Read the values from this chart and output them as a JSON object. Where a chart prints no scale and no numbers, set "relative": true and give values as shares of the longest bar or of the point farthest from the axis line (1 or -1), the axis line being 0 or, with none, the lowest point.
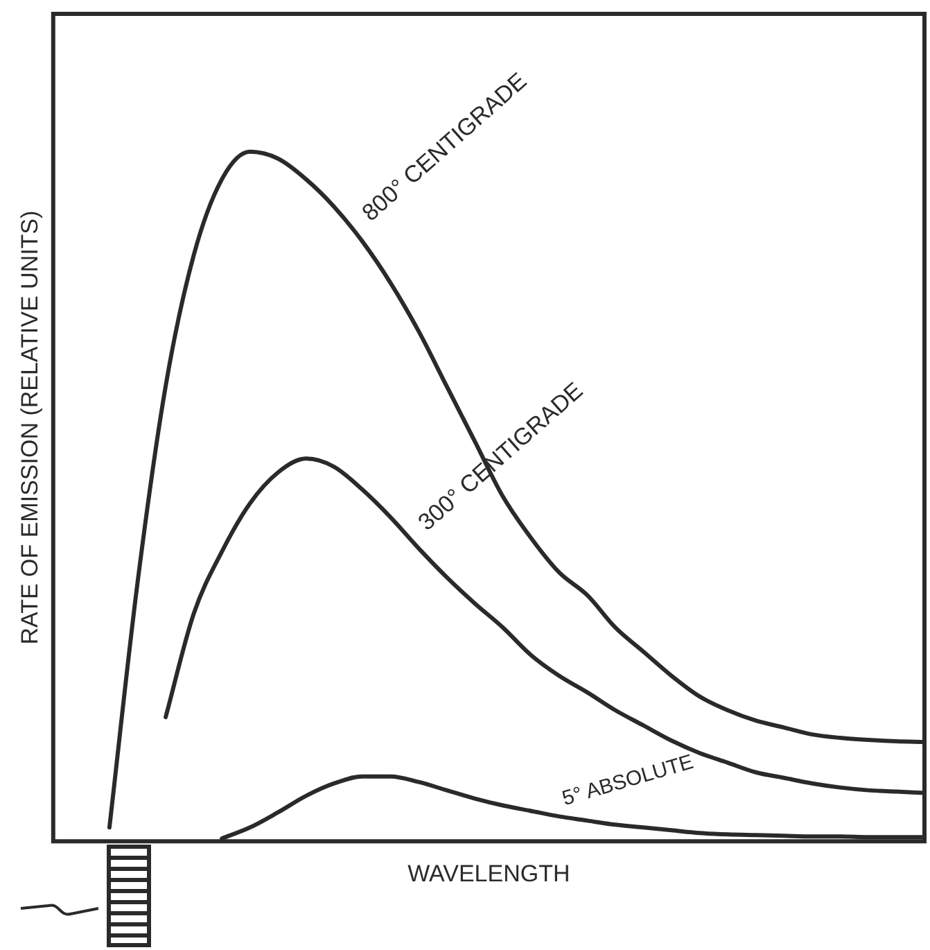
{
  "chart_data": {
    "type": "line",
    "relative": true,
    "xlabel": "WAVELENGTH",
    "ylabel": "RATE OF EMISSION (RELATIVE UNITS)",
    "grid": false,
    "legend": false,
    "marker": "none",
    "line_style": "solid",
    "categories": [
      null,
      null,
      null,
      null,
      null,
      null,
      null,
      null,
      null,
      null,
      null,
      null,
      null,
      null,
      null,
      null,
      null,
      null,
      null,
      null,
      null,
      null,
      null,
      null,
      null,
      null,
      null,
      null,
      null,
      null,
      null,
      null
    ],
    "series": [
      {
        "name": "800° CENTIGRADE",
        "color": "#2a2a2a",
        "values": [
          null,
          null,
          0.02,
          0.375,
          0.66,
          0.85,
          0.96,
          1.0,
          0.99,
          0.96,
          0.92,
          0.87,
          0.81,
          0.74,
          0.66,
          0.58,
          0.5,
          0.44,
          0.39,
          0.357,
          0.31,
          0.275,
          0.24,
          0.21,
          0.19,
          0.175,
          0.165,
          0.155,
          0.15,
          0.147,
          0.145,
          0.144
        ]
      },
      {
        "name": "300° CENTIGRADE",
        "color": "#2a2a2a",
        "values": [
          null,
          null,
          null,
          null,
          0.18,
          0.33,
          0.42,
          0.49,
          0.535,
          0.555,
          0.543,
          0.51,
          0.47,
          0.425,
          0.383,
          0.345,
          0.31,
          0.27,
          0.24,
          0.216,
          0.19,
          0.168,
          0.146,
          0.128,
          0.114,
          0.1,
          0.092,
          0.084,
          0.078,
          0.074,
          0.072,
          0.07
        ]
      },
      {
        "name": "5° ABSOLUTE",
        "color": "#2a2a2a",
        "values": [
          null,
          null,
          null,
          null,
          null,
          null,
          0.004,
          0.02,
          0.042,
          0.066,
          0.084,
          0.094,
          0.094,
          0.086,
          0.074,
          0.062,
          0.052,
          0.044,
          0.036,
          0.03,
          0.024,
          0.02,
          0.016,
          0.012,
          0.01,
          0.009,
          0.008,
          0.007,
          0.007,
          0.006,
          0.006,
          0.006
        ]
      }
    ]
  }
}
